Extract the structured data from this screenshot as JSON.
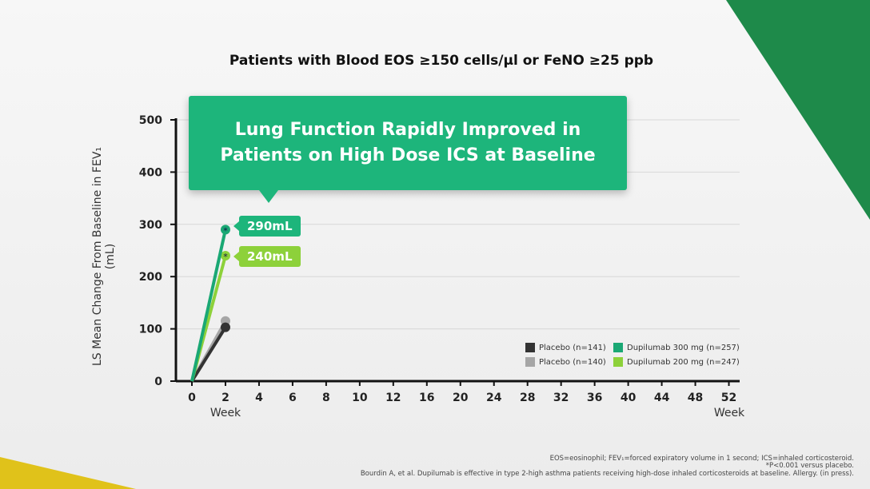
{
  "header": {
    "title": "Patients with Blood EOS ≥150 cells/µl or FeNO ≥25 ppb"
  },
  "callout": {
    "line1": "Lung Function Rapidly Improved in",
    "line2": "Patients on High Dose ICS at Baseline"
  },
  "tags": {
    "d300": "290mL",
    "d200": "240mL"
  },
  "footnotes": {
    "line1": "EOS=eosinophil; FEV₁=forced expiratory volume in 1 second; ICS=inhaled corticosteroid.",
    "line2": "*P<0.001 versus placebo.",
    "citation": "Bourdin A, et al. Dupilumab is effective in type 2-high asthma patients receiving high-dose inhaled corticosteroids at baseline. Allergy. (in press)."
  },
  "chart_data": {
    "type": "line",
    "title": "Patients with Blood EOS ≥150 cells/µl or FeNO ≥25 ppb",
    "ylabel": "LS Mean Change From Baseline in FEV₁ (mL)",
    "xlabel": "Week",
    "x_ticks": [
      "0",
      "2",
      "4",
      "6",
      "8",
      "10",
      "12",
      "16",
      "20",
      "24",
      "28",
      "32",
      "36",
      "40",
      "44",
      "48",
      "52"
    ],
    "y_ticks": [
      "0",
      "100",
      "200",
      "300",
      "400",
      "500"
    ],
    "ylim": [
      0,
      500
    ],
    "grid": true,
    "legend_position": "bottom-right",
    "series": [
      {
        "name": "Placebo (n=141)",
        "color": "#333333",
        "x": [
          0,
          2
        ],
        "values": [
          0,
          103
        ]
      },
      {
        "name": "Placebo (n=140)",
        "color": "#a6a6a6",
        "x": [
          0,
          2
        ],
        "values": [
          0,
          115
        ]
      },
      {
        "name": "Dupilumab 300 mg (n=257)",
        "color": "#1aa874",
        "x": [
          0,
          2
        ],
        "values": [
          0,
          290
        ],
        "annotation": "*"
      },
      {
        "name": "Dupilumab 200 mg (n=247)",
        "color": "#8dd13a",
        "x": [
          0,
          2
        ],
        "values": [
          0,
          240
        ],
        "annotation": "*"
      }
    ]
  }
}
